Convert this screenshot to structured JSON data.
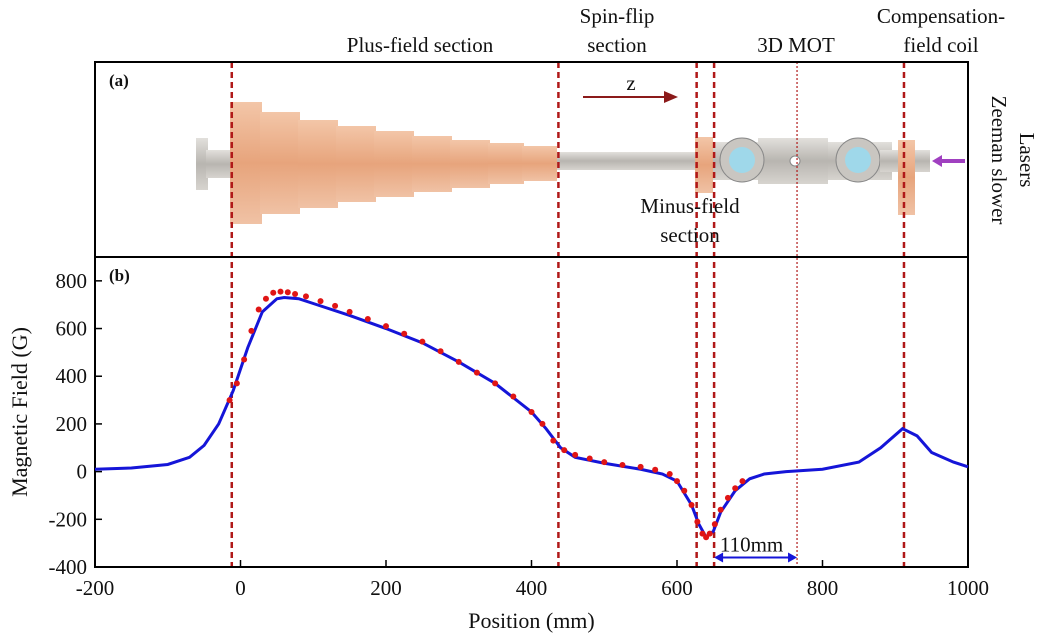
{
  "chart_data": {
    "type": "line",
    "panel_labels": [
      "(a)",
      "(b)"
    ],
    "xlabel": "Position (mm)",
    "ylabel": "Magnetic Field (G)",
    "xlim": [
      -200,
      1000
    ],
    "ylim": [
      -400,
      900
    ],
    "xticks": [
      -200,
      0,
      200,
      400,
      600,
      800,
      1000
    ],
    "yticks": [
      -400,
      -200,
      0,
      200,
      400,
      600,
      800
    ],
    "series": [
      {
        "color": "#1515d8",
        "style": "line",
        "x": [
          -200,
          -150,
          -100,
          -70,
          -50,
          -30,
          -10,
          10,
          30,
          50,
          60,
          80,
          100,
          150,
          200,
          250,
          300,
          350,
          400,
          420,
          440,
          460,
          500,
          550,
          580,
          600,
          620,
          630,
          640,
          650,
          660,
          680,
          700,
          720,
          750,
          800,
          850,
          880,
          910,
          930,
          950,
          980,
          1000
        ],
        "values": [
          10,
          15,
          30,
          60,
          110,
          200,
          340,
          520,
          670,
          725,
          730,
          725,
          705,
          655,
          600,
          540,
          460,
          370,
          250,
          180,
          100,
          60,
          35,
          10,
          -10,
          -40,
          -140,
          -220,
          -275,
          -250,
          -170,
          -80,
          -30,
          -10,
          0,
          10,
          40,
          100,
          180,
          150,
          80,
          40,
          20
        ]
      },
      {
        "color": "#e01515",
        "style": "markers",
        "x": [
          -15,
          -5,
          5,
          15,
          25,
          35,
          45,
          55,
          65,
          75,
          90,
          110,
          130,
          150,
          175,
          200,
          225,
          250,
          275,
          300,
          325,
          350,
          375,
          400,
          415,
          430,
          445,
          460,
          480,
          500,
          525,
          550,
          570,
          590,
          600,
          610,
          620,
          628,
          635,
          640,
          645,
          652,
          660,
          670,
          680,
          690
        ],
        "values": [
          300,
          370,
          470,
          590,
          680,
          725,
          750,
          755,
          752,
          745,
          735,
          715,
          695,
          670,
          640,
          610,
          578,
          545,
          505,
          460,
          415,
          370,
          315,
          250,
          200,
          130,
          90,
          70,
          55,
          40,
          28,
          20,
          8,
          -10,
          -40,
          -80,
          -140,
          -210,
          -260,
          -275,
          -260,
          -220,
          -160,
          -110,
          -70,
          -40
        ]
      }
    ],
    "vlines": [
      {
        "x": -12,
        "style": "dashed"
      },
      {
        "x": 437,
        "style": "dashed"
      },
      {
        "x": 627,
        "style": "dashed"
      },
      {
        "x": 651,
        "style": "dashed"
      },
      {
        "x": 765,
        "style": "dotted"
      },
      {
        "x": 912,
        "style": "dashed"
      }
    ],
    "span_annotation": {
      "text": "110mm",
      "x": [
        651,
        765
      ],
      "y": -360
    },
    "section_labels": [
      {
        "lines": [
          "Plus-field section"
        ]
      },
      {
        "lines": [
          "Spin-flip",
          "section"
        ]
      },
      {
        "lines": [
          "3D MOT"
        ]
      },
      {
        "lines": [
          "Compensation-",
          "field coil"
        ]
      },
      {
        "lines": [
          "Minus-field",
          "section"
        ]
      }
    ],
    "direction_label": "z",
    "side_label": [
      "Zeeman slower",
      "Lasers"
    ]
  }
}
